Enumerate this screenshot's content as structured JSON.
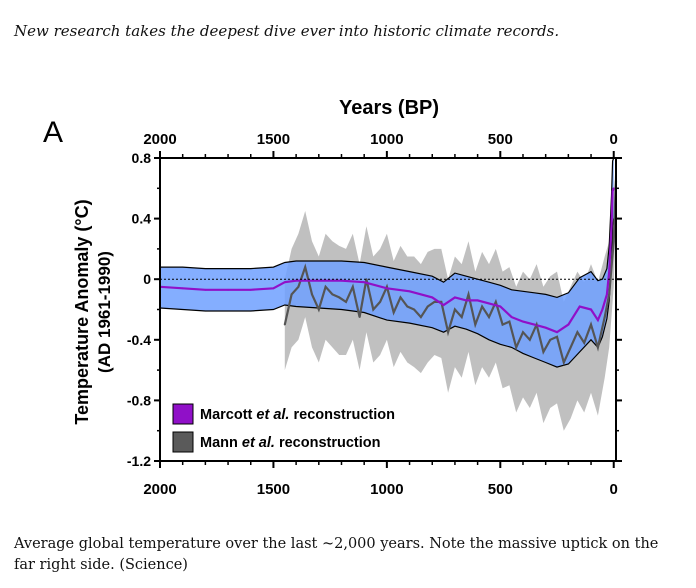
{
  "intro": "New research takes the deepest dive ever into historic climate records.",
  "caption": "Average global temperature over the last ~2,000 years. Note the massive uptick on the far right side. (Science)",
  "chart_data": {
    "type": "line",
    "panel_label": "A",
    "top_axis_title": "Years (BP)",
    "ylabel_line1": "Temperature Anomaly (°C)",
    "ylabel_line2": "(AD 1961-1990)",
    "xlim": [
      2000,
      -10
    ],
    "ylim": [
      -1.2,
      0.8
    ],
    "x_ticks": [
      2000,
      1500,
      1000,
      500,
      0
    ],
    "y_ticks": [
      0.8,
      0.4,
      0,
      -0.4,
      -0.8,
      -1.2
    ],
    "y_tick_labels": [
      "0.8",
      "0.4",
      "0",
      "-0.4",
      "-0.8",
      "-1.2"
    ],
    "legend_position": "bottom-left",
    "colors": {
      "marcott": "#9010c8",
      "marcott_band": "#6fa0ff",
      "mann": "#555555",
      "mann_band": "#b5b5b5"
    },
    "series": [
      {
        "name": "Marcott et al. reconstruction",
        "x": [
          2000,
          1900,
          1800,
          1700,
          1600,
          1500,
          1450,
          1400,
          1300,
          1200,
          1100,
          1000,
          900,
          800,
          750,
          700,
          650,
          600,
          550,
          500,
          450,
          400,
          350,
          300,
          250,
          200,
          150,
          100,
          70,
          50,
          30,
          20,
          10,
          5,
          0
        ],
        "values": [
          -0.05,
          -0.06,
          -0.07,
          -0.07,
          -0.07,
          -0.06,
          -0.02,
          -0.01,
          -0.01,
          -0.01,
          -0.02,
          -0.06,
          -0.08,
          -0.12,
          -0.17,
          -0.12,
          -0.14,
          -0.14,
          -0.16,
          -0.18,
          -0.25,
          -0.28,
          -0.3,
          -0.32,
          -0.35,
          -0.3,
          -0.18,
          -0.2,
          -0.27,
          -0.2,
          -0.1,
          0.05,
          0.35,
          0.58,
          0.6
        ],
        "lower": [
          -0.19,
          -0.2,
          -0.21,
          -0.21,
          -0.21,
          -0.2,
          -0.17,
          -0.18,
          -0.19,
          -0.2,
          -0.22,
          -0.27,
          -0.29,
          -0.32,
          -0.35,
          -0.31,
          -0.33,
          -0.36,
          -0.4,
          -0.43,
          -0.45,
          -0.49,
          -0.52,
          -0.55,
          -0.58,
          -0.56,
          -0.48,
          -0.4,
          -0.45,
          -0.38,
          -0.26,
          -0.14,
          0.1,
          0.35,
          0.4
        ],
        "upper": [
          0.08,
          0.08,
          0.07,
          0.07,
          0.07,
          0.08,
          0.11,
          0.12,
          0.12,
          0.12,
          0.11,
          0.08,
          0.05,
          0.02,
          -0.02,
          0.04,
          0.02,
          0.0,
          -0.02,
          -0.04,
          -0.07,
          -0.08,
          -0.09,
          -0.1,
          -0.12,
          -0.09,
          0.01,
          0.05,
          -0.01,
          0.0,
          0.07,
          0.22,
          0.55,
          0.78,
          0.8
        ]
      },
      {
        "name": "Mann et al. reconstruction",
        "x": [
          1450,
          1420,
          1390,
          1360,
          1330,
          1300,
          1270,
          1240,
          1210,
          1180,
          1150,
          1120,
          1090,
          1060,
          1030,
          1000,
          970,
          940,
          910,
          880,
          850,
          820,
          790,
          760,
          730,
          700,
          670,
          640,
          610,
          580,
          550,
          520,
          490,
          460,
          430,
          400,
          370,
          340,
          310,
          280,
          250,
          220,
          190,
          160,
          130,
          100,
          70,
          40,
          20,
          0,
          -10
        ],
        "values": [
          -0.3,
          -0.1,
          -0.05,
          0.08,
          -0.1,
          -0.2,
          -0.05,
          -0.1,
          -0.12,
          -0.15,
          -0.05,
          -0.25,
          0.0,
          -0.2,
          -0.15,
          -0.05,
          -0.22,
          -0.12,
          -0.18,
          -0.2,
          -0.25,
          -0.18,
          -0.15,
          -0.15,
          -0.35,
          -0.2,
          -0.25,
          -0.1,
          -0.3,
          -0.18,
          -0.25,
          -0.15,
          -0.3,
          -0.28,
          -0.45,
          -0.35,
          -0.4,
          -0.3,
          -0.48,
          -0.4,
          -0.38,
          -0.55,
          -0.45,
          -0.35,
          -0.42,
          -0.3,
          -0.45,
          -0.25,
          -0.1,
          0.25,
          0.65
        ],
        "lower": [
          -0.6,
          -0.45,
          -0.4,
          -0.25,
          -0.45,
          -0.55,
          -0.4,
          -0.45,
          -0.5,
          -0.5,
          -0.4,
          -0.6,
          -0.35,
          -0.55,
          -0.5,
          -0.4,
          -0.58,
          -0.48,
          -0.55,
          -0.58,
          -0.62,
          -0.55,
          -0.5,
          -0.52,
          -0.75,
          -0.58,
          -0.65,
          -0.48,
          -0.7,
          -0.58,
          -0.65,
          -0.55,
          -0.72,
          -0.7,
          -0.88,
          -0.78,
          -0.85,
          -0.75,
          -0.95,
          -0.85,
          -0.82,
          -1.0,
          -0.92,
          -0.8,
          -0.88,
          -0.75,
          -0.9,
          -0.65,
          -0.45,
          -0.05,
          0.45
        ],
        "upper": [
          0.0,
          0.2,
          0.3,
          0.45,
          0.25,
          0.15,
          0.3,
          0.25,
          0.22,
          0.2,
          0.3,
          0.1,
          0.35,
          0.15,
          0.2,
          0.3,
          0.12,
          0.22,
          0.15,
          0.15,
          0.1,
          0.18,
          0.2,
          0.2,
          0.0,
          0.15,
          0.1,
          0.25,
          0.05,
          0.18,
          0.1,
          0.2,
          0.05,
          0.08,
          -0.05,
          0.05,
          0.0,
          0.1,
          -0.05,
          0.02,
          0.05,
          -0.15,
          -0.05,
          0.05,
          -0.02,
          0.1,
          -0.02,
          0.15,
          0.25,
          0.55,
          0.8
        ]
      }
    ],
    "legend": [
      {
        "label_plain": "Marcott ",
        "label_italic": "et al.",
        "label_rest": " reconstruction",
        "color": "#9010c8"
      },
      {
        "label_plain": "Mann ",
        "label_italic": "et al.",
        "label_rest": " reconstruction",
        "color": "#5a5a5a"
      }
    ]
  }
}
